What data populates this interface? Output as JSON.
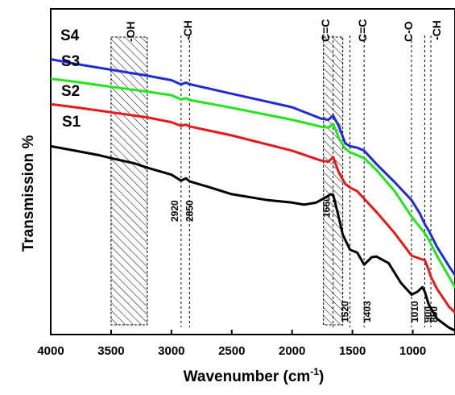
{
  "chart_data": {
    "type": "line",
    "xlabel": "Wavenumber (cm",
    "xlabel_sup": "-1",
    "xlabel_close": ")",
    "ylabel": "Transmission %",
    "xlim": [
      4000,
      650
    ],
    "ylim": [
      0,
      100
    ],
    "x_ticks": [
      4000,
      3500,
      3000,
      2500,
      2000,
      1500,
      1000
    ],
    "x_tick_labels": [
      "4000",
      "3500",
      "3000",
      "2500",
      "2000",
      "1500",
      "1000"
    ],
    "grid": false,
    "series": [
      {
        "name": "S4",
        "color": "#1f2bd6",
        "x": [
          4000,
          3800,
          3500,
          3200,
          3000,
          2920,
          2880,
          2850,
          2500,
          2000,
          1760,
          1700,
          1660,
          1610,
          1560,
          1520,
          1460,
          1403,
          1300,
          1150,
          1010,
          940,
          900,
          870,
          850,
          800,
          700,
          650
        ],
        "y": [
          91,
          89.5,
          87.5,
          85.5,
          84,
          82.6,
          83.2,
          82.7,
          79.5,
          75,
          71.2,
          70.8,
          72.2,
          68.5,
          63,
          62,
          61.5,
          60.5,
          56,
          50,
          44,
          39.5,
          36,
          34,
          32.5,
          28.5,
          22,
          19
        ]
      },
      {
        "name": "S3",
        "color": "#22e61c",
        "x": [
          4000,
          3800,
          3500,
          3200,
          3000,
          2920,
          2880,
          2850,
          2500,
          2000,
          1760,
          1700,
          1660,
          1610,
          1560,
          1520,
          1460,
          1403,
          1300,
          1150,
          1010,
          940,
          900,
          870,
          850,
          800,
          700,
          650
        ],
        "y": [
          84.5,
          83.5,
          81.8,
          80.2,
          79,
          77.6,
          78,
          77.4,
          74.8,
          70.8,
          68.5,
          68.2,
          69.4,
          64.5,
          61.2,
          60,
          59,
          58,
          54,
          47,
          38.5,
          35,
          33,
          31,
          29.5,
          25.5,
          18.5,
          15
        ]
      },
      {
        "name": "S2",
        "color": "#e81818",
        "x": [
          4000,
          3800,
          3500,
          3200,
          3000,
          2920,
          2880,
          2850,
          2500,
          2000,
          1760,
          1700,
          1660,
          1610,
          1560,
          1520,
          1460,
          1403,
          1300,
          1150,
          1010,
          940,
          900,
          870,
          850,
          800,
          700,
          650
        ],
        "y": [
          76,
          75,
          73.3,
          71.6,
          70,
          68.8,
          69.2,
          68.6,
          65.6,
          60.5,
          57.2,
          56.8,
          58.4,
          53,
          49.5,
          48.2,
          47,
          44.5,
          40,
          33,
          25.5,
          24.5,
          24,
          21,
          18.5,
          14.5,
          8.5,
          6.5
        ]
      },
      {
        "name": "S1",
        "color": "#000000",
        "x": [
          4000,
          3800,
          3600,
          3500,
          3300,
          3200,
          3000,
          2920,
          2880,
          2850,
          2700,
          2500,
          2200,
          2000,
          1900,
          1800,
          1720,
          1680,
          1660,
          1620,
          1580,
          1520,
          1460,
          1403,
          1340,
          1300,
          1200,
          1100,
          1010,
          960,
          920,
          900,
          870,
          850,
          800,
          700,
          650
        ],
        "y": [
          62,
          60.5,
          59,
          58,
          56.2,
          54.8,
          52.5,
          50.5,
          51.3,
          50.3,
          48.5,
          46,
          44,
          43.2,
          42.5,
          43.2,
          45,
          46,
          45.8,
          39.5,
          32.5,
          27.5,
          26.5,
          22.5,
          25,
          25.2,
          23,
          16.5,
          12.5,
          13.5,
          15,
          13.5,
          9.5,
          8,
          4.5,
          1.5,
          0.5
        ]
      }
    ],
    "series_labels": [
      "S4",
      "S3",
      "S2",
      "S1"
    ],
    "hatched_bands": [
      {
        "label": "-OH",
        "x_from": 3500,
        "x_to": 3200
      },
      {
        "label": "C=C",
        "x_from": 1740,
        "x_to": 1580
      }
    ],
    "band_labels": [
      "-OH",
      "-CH",
      "C=C",
      "C=C",
      "C-O",
      "-CH"
    ],
    "reference_lines": [
      {
        "x": 2920,
        "label": "2920"
      },
      {
        "x": 2850,
        "label": "2850"
      },
      {
        "x": 1660,
        "label": "1660"
      },
      {
        "x": 1520,
        "label": "1520"
      },
      {
        "x": 1403,
        "label": "1403"
      },
      {
        "x": 1010,
        "label": "1010"
      },
      {
        "x": 900,
        "label": "900"
      },
      {
        "x": 850,
        "label": "850"
      }
    ]
  }
}
